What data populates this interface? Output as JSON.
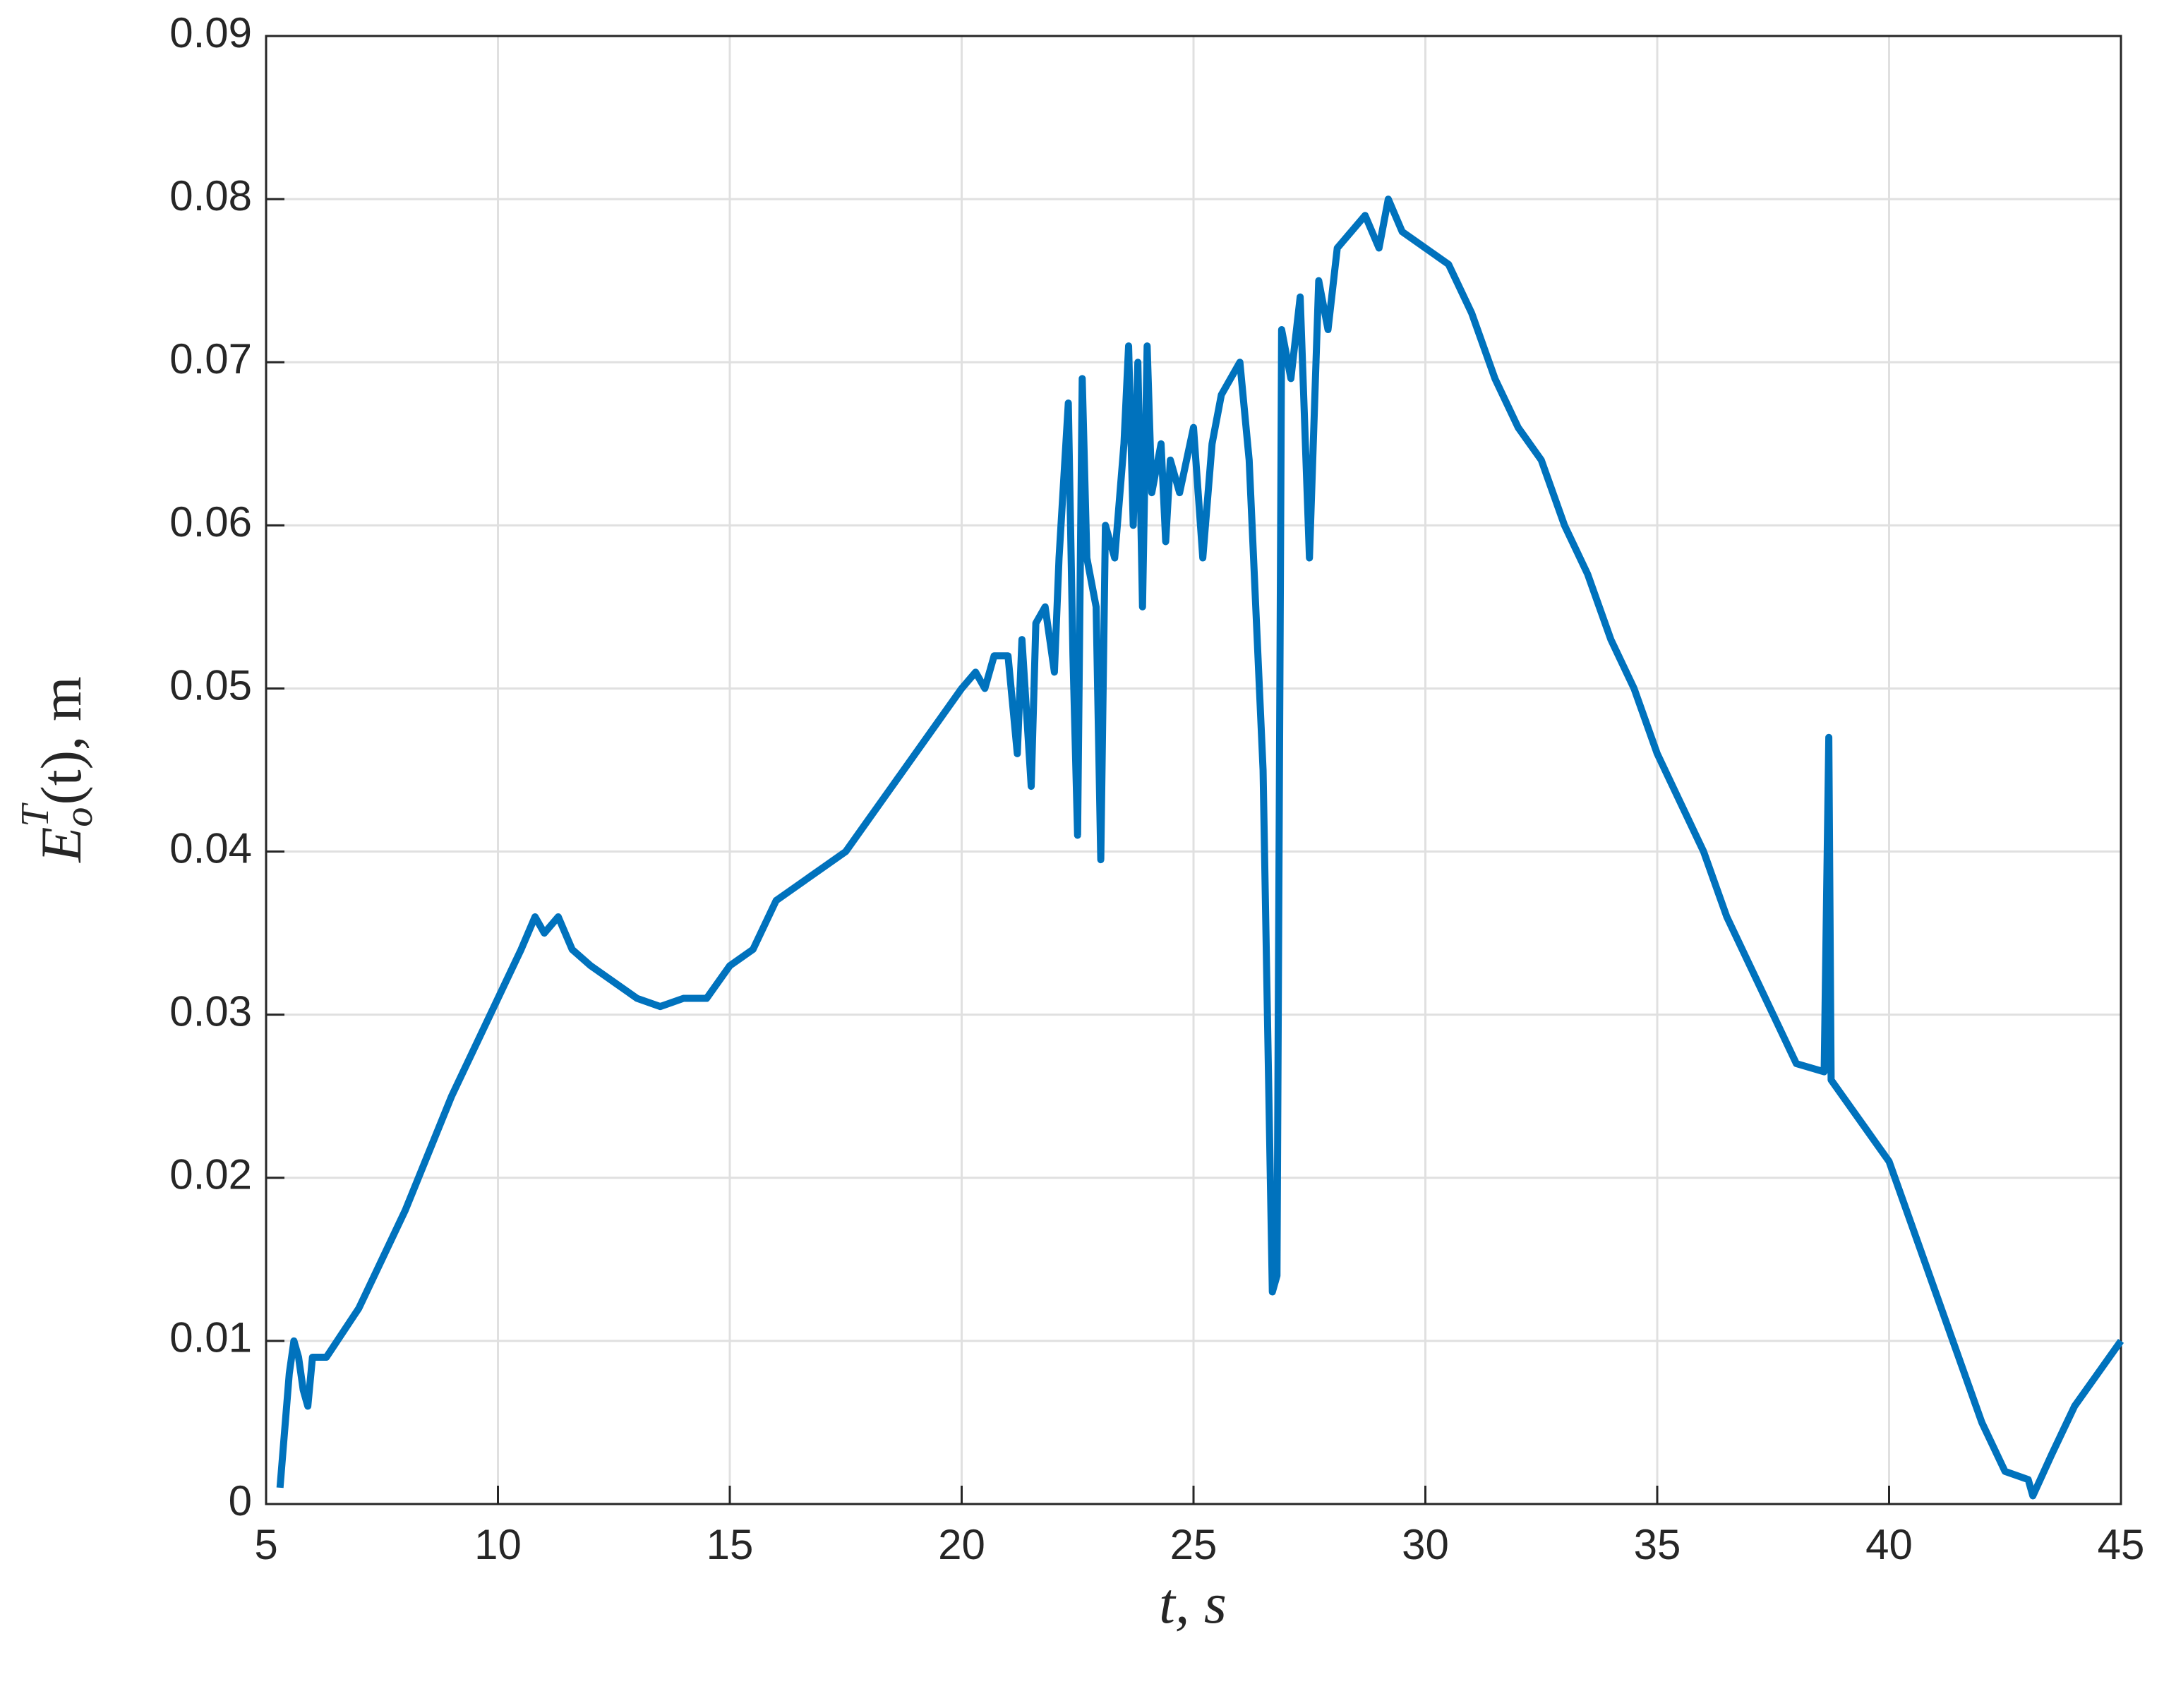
{
  "chart_data": {
    "type": "line",
    "xlabel": "t, s",
    "ylabel": {
      "base": "E",
      "sub": "o",
      "sup": "T",
      "rest": "(t), m"
    },
    "xlim": [
      5,
      45
    ],
    "xticks": [
      5,
      10,
      15,
      20,
      25,
      30,
      35,
      40,
      45
    ],
    "ylim": [
      0,
      0.09
    ],
    "yticks": [
      0,
      0.01,
      0.02,
      0.03,
      0.04,
      0.05,
      0.06,
      0.07,
      0.08,
      0.09
    ],
    "grid": true,
    "series": [
      {
        "color": "#0072bd",
        "x": [
          5.3,
          5.5,
          5.6,
          5.7,
          5.8,
          5.9,
          6.0,
          6.3,
          7,
          8,
          9,
          10,
          10.5,
          10.8,
          11,
          11.3,
          11.6,
          12,
          12.5,
          13,
          13.5,
          14,
          14.5,
          15,
          15.5,
          16,
          16.5,
          17,
          17.5,
          18,
          18.5,
          19,
          19.5,
          20,
          20.3,
          20.5,
          20.7,
          21,
          21.2,
          21.3,
          21.5,
          21.6,
          21.8,
          22,
          22.1,
          22.3,
          22.4,
          22.5,
          22.6,
          22.7,
          22.9,
          23.0,
          23.1,
          23.3,
          23.5,
          23.6,
          23.7,
          23.8,
          23.9,
          24.0,
          24.1,
          24.3,
          24.4,
          24.5,
          24.7,
          25,
          25.2,
          25.4,
          25.6,
          25.8,
          26,
          26.2,
          26.5,
          26.7,
          26.8,
          26.9,
          27.1,
          27.3,
          27.5,
          27.7,
          27.9,
          28.1,
          28.4,
          28.7,
          29,
          29.2,
          29.5,
          30,
          30.5,
          31,
          31.5,
          32,
          32.5,
          33,
          33.5,
          34,
          34.5,
          35,
          35.5,
          36,
          36.5,
          37,
          37.5,
          38,
          38.6,
          38.7,
          38.75,
          39,
          39.5,
          40,
          40.5,
          41,
          41.5,
          42,
          42.5,
          43,
          43.1,
          43.5,
          44,
          44.5,
          45
        ],
        "values": [
          0.001,
          0.008,
          0.01,
          0.009,
          0.007,
          0.006,
          0.009,
          0.009,
          0.012,
          0.018,
          0.025,
          0.031,
          0.034,
          0.036,
          0.035,
          0.036,
          0.034,
          0.033,
          0.032,
          0.031,
          0.0305,
          0.031,
          0.031,
          0.033,
          0.034,
          0.037,
          0.038,
          0.039,
          0.04,
          0.042,
          0.044,
          0.046,
          0.048,
          0.05,
          0.051,
          0.05,
          0.052,
          0.052,
          0.046,
          0.053,
          0.044,
          0.054,
          0.055,
          0.051,
          0.058,
          0.0675,
          0.052,
          0.041,
          0.069,
          0.058,
          0.055,
          0.0395,
          0.06,
          0.058,
          0.065,
          0.071,
          0.06,
          0.07,
          0.055,
          0.071,
          0.062,
          0.065,
          0.059,
          0.064,
          0.062,
          0.066,
          0.058,
          0.065,
          0.068,
          0.069,
          0.07,
          0.064,
          0.045,
          0.013,
          0.014,
          0.072,
          0.069,
          0.074,
          0.058,
          0.075,
          0.072,
          0.077,
          0.078,
          0.079,
          0.077,
          0.08,
          0.078,
          0.077,
          0.076,
          0.073,
          0.069,
          0.066,
          0.064,
          0.06,
          0.057,
          0.053,
          0.05,
          0.046,
          0.043,
          0.04,
          0.036,
          0.033,
          0.03,
          0.027,
          0.0265,
          0.047,
          0.026,
          0.025,
          0.023,
          0.021,
          0.017,
          0.013,
          0.009,
          0.005,
          0.002,
          0.0015,
          0.0005,
          0.003,
          0.006,
          0.008,
          0.01
        ]
      }
    ]
  }
}
